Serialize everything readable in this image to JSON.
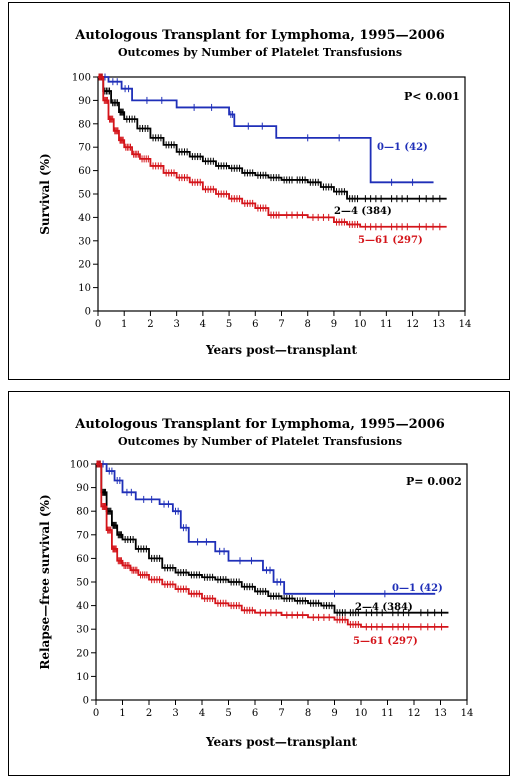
{
  "colors": {
    "group_0_1": "#1f2fb8",
    "group_2_4": "#000000",
    "group_5_61": "#d4141a"
  },
  "chart_data": [
    {
      "type": "line",
      "title": "Autologous Transplant for Lymphoma, 1995—2006",
      "subtitle": "Outcomes by Number of Platelet Transfusions",
      "xlabel": "Years post—transplant",
      "ylabel": "Survival (%)",
      "xlim": [
        0,
        14
      ],
      "ylim": [
        0,
        100
      ],
      "xticks": [
        0,
        1,
        2,
        3,
        4,
        5,
        6,
        7,
        8,
        9,
        10,
        11,
        12,
        13,
        14
      ],
      "yticks": [
        0,
        10,
        20,
        30,
        40,
        50,
        60,
        70,
        80,
        90,
        100
      ],
      "annotation": "P< 0.001",
      "series": [
        {
          "name": "0—1 (42)",
          "key": "group_0_1",
          "x": [
            0,
            0.4,
            0.9,
            1.3,
            3.0,
            5.0,
            5.2,
            6.8,
            10.4,
            12.8
          ],
          "y": [
            100,
            98,
            95,
            90,
            87,
            84,
            79,
            74,
            55,
            55
          ]
        },
        {
          "name": "2—4 (384)",
          "key": "group_2_4",
          "x": [
            0,
            0.2,
            0.5,
            0.8,
            1.0,
            1.5,
            2.0,
            2.5,
            3.0,
            3.5,
            4.0,
            4.5,
            5.0,
            5.5,
            6.0,
            6.5,
            7.0,
            7.5,
            8.0,
            8.5,
            9.0,
            9.5,
            10.0,
            11.0,
            12.0,
            13.3
          ],
          "y": [
            100,
            94,
            89,
            85,
            82,
            78,
            74,
            71,
            68,
            66,
            64,
            62,
            61,
            59,
            58,
            57,
            56,
            56,
            55,
            53,
            51,
            48,
            48,
            48,
            48,
            48
          ]
        },
        {
          "name": "5—61 (297)",
          "key": "group_5_61",
          "x": [
            0,
            0.2,
            0.4,
            0.6,
            0.8,
            1.0,
            1.3,
            1.6,
            2.0,
            2.5,
            3.0,
            3.5,
            4.0,
            4.5,
            5.0,
            5.5,
            6.0,
            6.5,
            7.0,
            8.0,
            9.0,
            9.5,
            10.0,
            11.0,
            12.0,
            13.3
          ],
          "y": [
            100,
            90,
            82,
            77,
            73,
            70,
            67,
            65,
            62,
            59,
            57,
            55,
            52,
            50,
            48,
            46,
            44,
            41,
            41,
            40,
            38,
            37,
            36,
            36,
            36,
            36
          ]
        }
      ],
      "series_labels": [
        "0—1 (42)",
        "2—4 (384)",
        "5—61 (297)"
      ]
    },
    {
      "type": "line",
      "title": "Autologous Transplant for Lymphoma, 1995—2006",
      "subtitle": "Outcomes by Number of Platelet Transfusions",
      "xlabel": "Years post—transplant",
      "ylabel": "Relapse—free survival (%)",
      "xlim": [
        0,
        14
      ],
      "ylim": [
        0,
        100
      ],
      "xticks": [
        0,
        1,
        2,
        3,
        4,
        5,
        6,
        7,
        8,
        9,
        10,
        11,
        12,
        13,
        14
      ],
      "yticks": [
        0,
        10,
        20,
        30,
        40,
        50,
        60,
        70,
        80,
        90,
        100
      ],
      "annotation": "P= 0.002",
      "series": [
        {
          "name": "0—1 (42)",
          "key": "group_0_1",
          "x": [
            0,
            0.4,
            0.7,
            1.0,
            1.5,
            2.4,
            2.9,
            3.2,
            3.5,
            4.5,
            5.0,
            6.3,
            6.7,
            7.1,
            12.8
          ],
          "y": [
            100,
            97,
            93,
            88,
            85,
            83,
            80,
            73,
            67,
            63,
            59,
            55,
            50,
            45,
            45
          ]
        },
        {
          "name": "2—4 (384)",
          "key": "group_2_4",
          "x": [
            0,
            0.2,
            0.4,
            0.6,
            0.8,
            1.0,
            1.5,
            2.0,
            2.5,
            3.0,
            3.5,
            4.0,
            4.5,
            5.0,
            5.5,
            6.0,
            6.5,
            7.0,
            7.5,
            8.0,
            8.5,
            9.0,
            9.5,
            10.0,
            11.0,
            12.0,
            13.3
          ],
          "y": [
            100,
            88,
            80,
            74,
            70,
            68,
            64,
            60,
            56,
            54,
            53,
            52,
            51,
            50,
            48,
            46,
            44,
            43,
            42,
            41,
            40,
            37,
            37,
            37,
            37,
            37,
            37
          ]
        },
        {
          "name": "5—61 (297)",
          "key": "group_5_61",
          "x": [
            0,
            0.2,
            0.4,
            0.6,
            0.8,
            1.0,
            1.3,
            1.6,
            2.0,
            2.5,
            3.0,
            3.5,
            4.0,
            4.5,
            5.0,
            5.5,
            6.0,
            7.0,
            8.0,
            9.0,
            9.5,
            10.0,
            11.0,
            12.0,
            13.3
          ],
          "y": [
            100,
            82,
            72,
            64,
            59,
            57,
            55,
            53,
            51,
            49,
            47,
            45,
            43,
            41,
            40,
            38,
            37,
            36,
            35,
            34,
            32,
            31,
            31,
            31,
            31
          ]
        }
      ],
      "series_labels": [
        "0—1 (42)",
        "2—4 (384)",
        "5—61 (297)"
      ]
    }
  ]
}
